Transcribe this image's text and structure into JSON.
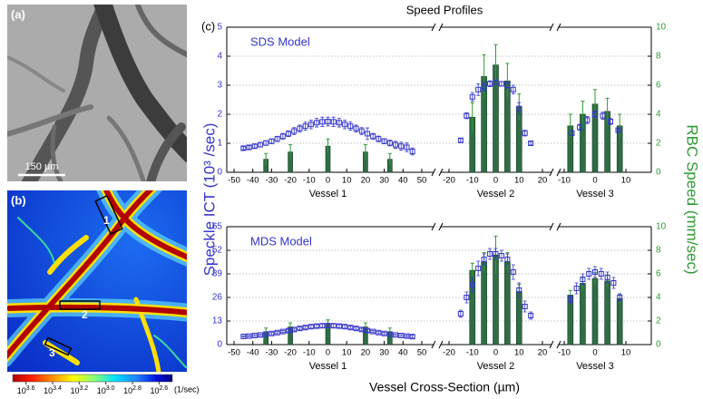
{
  "panels": {
    "a": "(a)",
    "b": "(b)",
    "c": "(c)"
  },
  "scale_bar": "150 µm",
  "vessel_markers": [
    "1",
    "2",
    "3"
  ],
  "colorbar": {
    "base": "10",
    "range": [
      3.7,
      2.5
    ],
    "ticks": [
      3.6,
      3.4,
      3.2,
      {
        "value": 3.0,
        "label": "3.0"
      },
      2.8,
      2.6
    ],
    "unit": "(1/sec)"
  },
  "figure": {
    "title": "Speed Profiles",
    "y_label": "Speckle ICT (10³ /sec)",
    "y2_label": "RBC Speed (mm/sec)",
    "x_label": "Vessel Cross-Section (µm)",
    "color": "#3434cc",
    "y2_color": "#2e9a34",
    "bar_color": "#2f6e45"
  },
  "chart_data": [
    {
      "type": "combo",
      "annotation": "SDS Model",
      "ylim": [
        0,
        5
      ],
      "yticks": [
        0,
        1,
        2,
        3,
        4,
        5
      ],
      "y2lim": [
        0,
        10
      ],
      "y2ticks": [
        0,
        2,
        4,
        6,
        8,
        10
      ],
      "grid": true,
      "vessels": [
        {
          "name": "Vessel 1",
          "xlim": [
            -50,
            50
          ],
          "xticks": [
            -50,
            -40,
            -30,
            -20,
            -10,
            0,
            10,
            20,
            30,
            40,
            50
          ],
          "ict": {
            "x": [
              -45,
              -42,
              -39,
              -36,
              -33,
              -30,
              -27,
              -24,
              -21,
              -18,
              -15,
              -12,
              -9,
              -6,
              -3,
              0,
              3,
              6,
              9,
              12,
              15,
              18,
              21,
              24,
              27,
              30,
              33,
              36,
              39,
              42,
              45
            ],
            "values": [
              0.83,
              0.86,
              0.9,
              0.95,
              1.01,
              1.07,
              1.15,
              1.24,
              1.33,
              1.42,
              1.51,
              1.59,
              1.65,
              1.71,
              1.74,
              1.75,
              1.74,
              1.71,
              1.65,
              1.59,
              1.51,
              1.42,
              1.33,
              1.24,
              1.15,
              1.07,
              1.01,
              0.95,
              0.9,
              0.86,
              0.72
            ],
            "errors": [
              0.05,
              0.06,
              0.06,
              0.07,
              0.08,
              0.08,
              0.09,
              0.1,
              0.1,
              0.12,
              0.12,
              0.14,
              0.15,
              0.15,
              0.16,
              0.15,
              0.16,
              0.15,
              0.15,
              0.14,
              0.12,
              0.12,
              0.2,
              0.1,
              0.1,
              0.09,
              0.1,
              0.12,
              0.14,
              0.15,
              0.12
            ]
          },
          "rbc": {
            "axis": "y2",
            "x": [
              -33,
              -20,
              0,
              20,
              33
            ],
            "values": [
              0.9,
              1.4,
              1.8,
              1.4,
              0.9
            ],
            "errors": [
              0.4,
              0.5,
              0.5,
              0.5,
              0.4
            ]
          }
        },
        {
          "name": "Vessel 2",
          "xlim": [
            -20,
            20
          ],
          "xticks": [
            -20,
            -10,
            0,
            10,
            20
          ],
          "ict": {
            "x": [
              -15,
              -12.5,
              -10,
              -7.5,
              -5,
              -2.5,
              0,
              2.5,
              5,
              7.5,
              10,
              12.5,
              15
            ],
            "values": [
              1.1,
              1.95,
              2.6,
              2.85,
              2.95,
              3.05,
              3.1,
              3.05,
              3.0,
              2.85,
              2.2,
              1.35,
              1.0
            ],
            "errors": [
              0.06,
              0.1,
              0.15,
              0.2,
              0.15,
              0.1,
              0.08,
              0.08,
              0.1,
              0.15,
              0.2,
              0.1,
              0.06
            ]
          },
          "rbc": {
            "axis": "y2",
            "x": [
              -10,
              -5,
              0,
              5,
              10
            ],
            "values": [
              3.8,
              6.6,
              7.4,
              6.3,
              4.5
            ],
            "errors": [
              1.0,
              1.5,
              1.4,
              1.2,
              0.9
            ]
          }
        },
        {
          "name": "Vessel 3",
          "xlim": [
            -10,
            10
          ],
          "xticks": [
            -10,
            0,
            10
          ],
          "ict": {
            "x": [
              -7.5,
              -5,
              -2.5,
              0,
              2.5,
              5,
              7.5
            ],
            "values": [
              1.35,
              1.55,
              1.8,
              2.0,
              1.95,
              1.75,
              1.45
            ],
            "errors": [
              0.08,
              0.1,
              0.12,
              0.12,
              0.12,
              0.1,
              0.08
            ]
          },
          "rbc": {
            "axis": "y2",
            "x": [
              -8,
              -4,
              0,
              4,
              8
            ],
            "values": [
              3.2,
              4.0,
              4.7,
              4.2,
              3.2
            ],
            "errors": [
              0.8,
              0.9,
              1.0,
              0.9,
              0.8
            ]
          }
        }
      ]
    },
    {
      "type": "combo",
      "annotation": "MDS Model",
      "ylim": [
        0,
        65
      ],
      "yticks": [
        0,
        13,
        26,
        39,
        52,
        65
      ],
      "y2lim": [
        0,
        10
      ],
      "y2ticks": [
        0,
        2,
        4,
        6,
        8,
        10
      ],
      "grid": true,
      "vessels": [
        {
          "name": "Vessel 1",
          "xlim": [
            -50,
            50
          ],
          "xticks": [
            -50,
            -40,
            -30,
            -20,
            -10,
            0,
            10,
            20,
            30,
            40,
            50
          ],
          "ict": {
            "x": [
              -45,
              -42,
              -39,
              -36,
              -33,
              -30,
              -27,
              -24,
              -21,
              -18,
              -15,
              -12,
              -9,
              -6,
              -3,
              0,
              3,
              6,
              9,
              12,
              15,
              18,
              21,
              24,
              27,
              30,
              33,
              36,
              39,
              42,
              45
            ],
            "values": [
              4.5,
              4.7,
              5.0,
              5.3,
              5.7,
              6.1,
              6.6,
              7.2,
              7.7,
              8.3,
              8.9,
              9.4,
              9.9,
              10.2,
              10.4,
              10.5,
              10.4,
              10.2,
              9.9,
              9.4,
              8.9,
              8.3,
              7.7,
              7.2,
              6.6,
              6.1,
              5.7,
              5.3,
              5.0,
              4.7,
              4.4
            ],
            "errors": [
              0.4,
              0.4,
              0.5,
              0.5,
              0.5,
              0.6,
              0.6,
              0.6,
              0.7,
              0.7,
              0.8,
              0.8,
              0.9,
              0.9,
              1.0,
              1.0,
              1.0,
              0.9,
              0.9,
              0.8,
              0.8,
              0.7,
              0.7,
              0.6,
              0.6,
              0.6,
              0.5,
              0.5,
              0.5,
              0.6,
              0.8
            ]
          },
          "rbc": {
            "axis": "y2",
            "x": [
              -33,
              -20,
              0,
              20,
              33
            ],
            "values": [
              1.1,
              1.5,
              1.7,
              1.5,
              1.1
            ],
            "errors": [
              0.3,
              0.35,
              0.4,
              0.35,
              0.3
            ]
          }
        },
        {
          "name": "Vessel 2",
          "xlim": [
            -20,
            20
          ],
          "xticks": [
            -20,
            -10,
            0,
            10,
            20
          ],
          "ict": {
            "x": [
              -15,
              -12.5,
              -10,
              -7.5,
              -5,
              -2.5,
              0,
              2.5,
              5,
              7.5,
              10,
              12.5,
              15
            ],
            "values": [
              17,
              26,
              33,
              42,
              47,
              50,
              50,
              49,
              47,
              40,
              30,
              21,
              16
            ],
            "errors": [
              2,
              3,
              4,
              4,
              3,
              3,
              3,
              3,
              3,
              4,
              4,
              3,
              2
            ]
          },
          "rbc": {
            "axis": "y2",
            "x": [
              -10,
              -5,
              0,
              5,
              10
            ],
            "values": [
              6.3,
              7.0,
              7.6,
              7.0,
              4.5
            ],
            "errors": [
              0.6,
              0.8,
              1.6,
              0.8,
              0.6
            ]
          }
        },
        {
          "name": "Vessel 3",
          "xlim": [
            -10,
            10
          ],
          "xticks": [
            -10,
            0,
            10
          ],
          "ict": {
            "x": [
              -8,
              -6,
              -4,
              -2,
              0,
              2,
              4,
              6,
              8
            ],
            "values": [
              25,
              31,
              36,
              39,
              40,
              39,
              37,
              34,
              26
            ],
            "errors": [
              2,
              3,
              3,
              3,
              3,
              3,
              3,
              3,
              2
            ]
          },
          "rbc": {
            "axis": "y2",
            "x": [
              -8,
              -4,
              0,
              4,
              8
            ],
            "values": [
              4.2,
              5.2,
              5.6,
              5.4,
              3.9
            ],
            "errors": [
              0.4,
              0.5,
              0.5,
              0.5,
              0.4
            ]
          }
        }
      ]
    }
  ]
}
